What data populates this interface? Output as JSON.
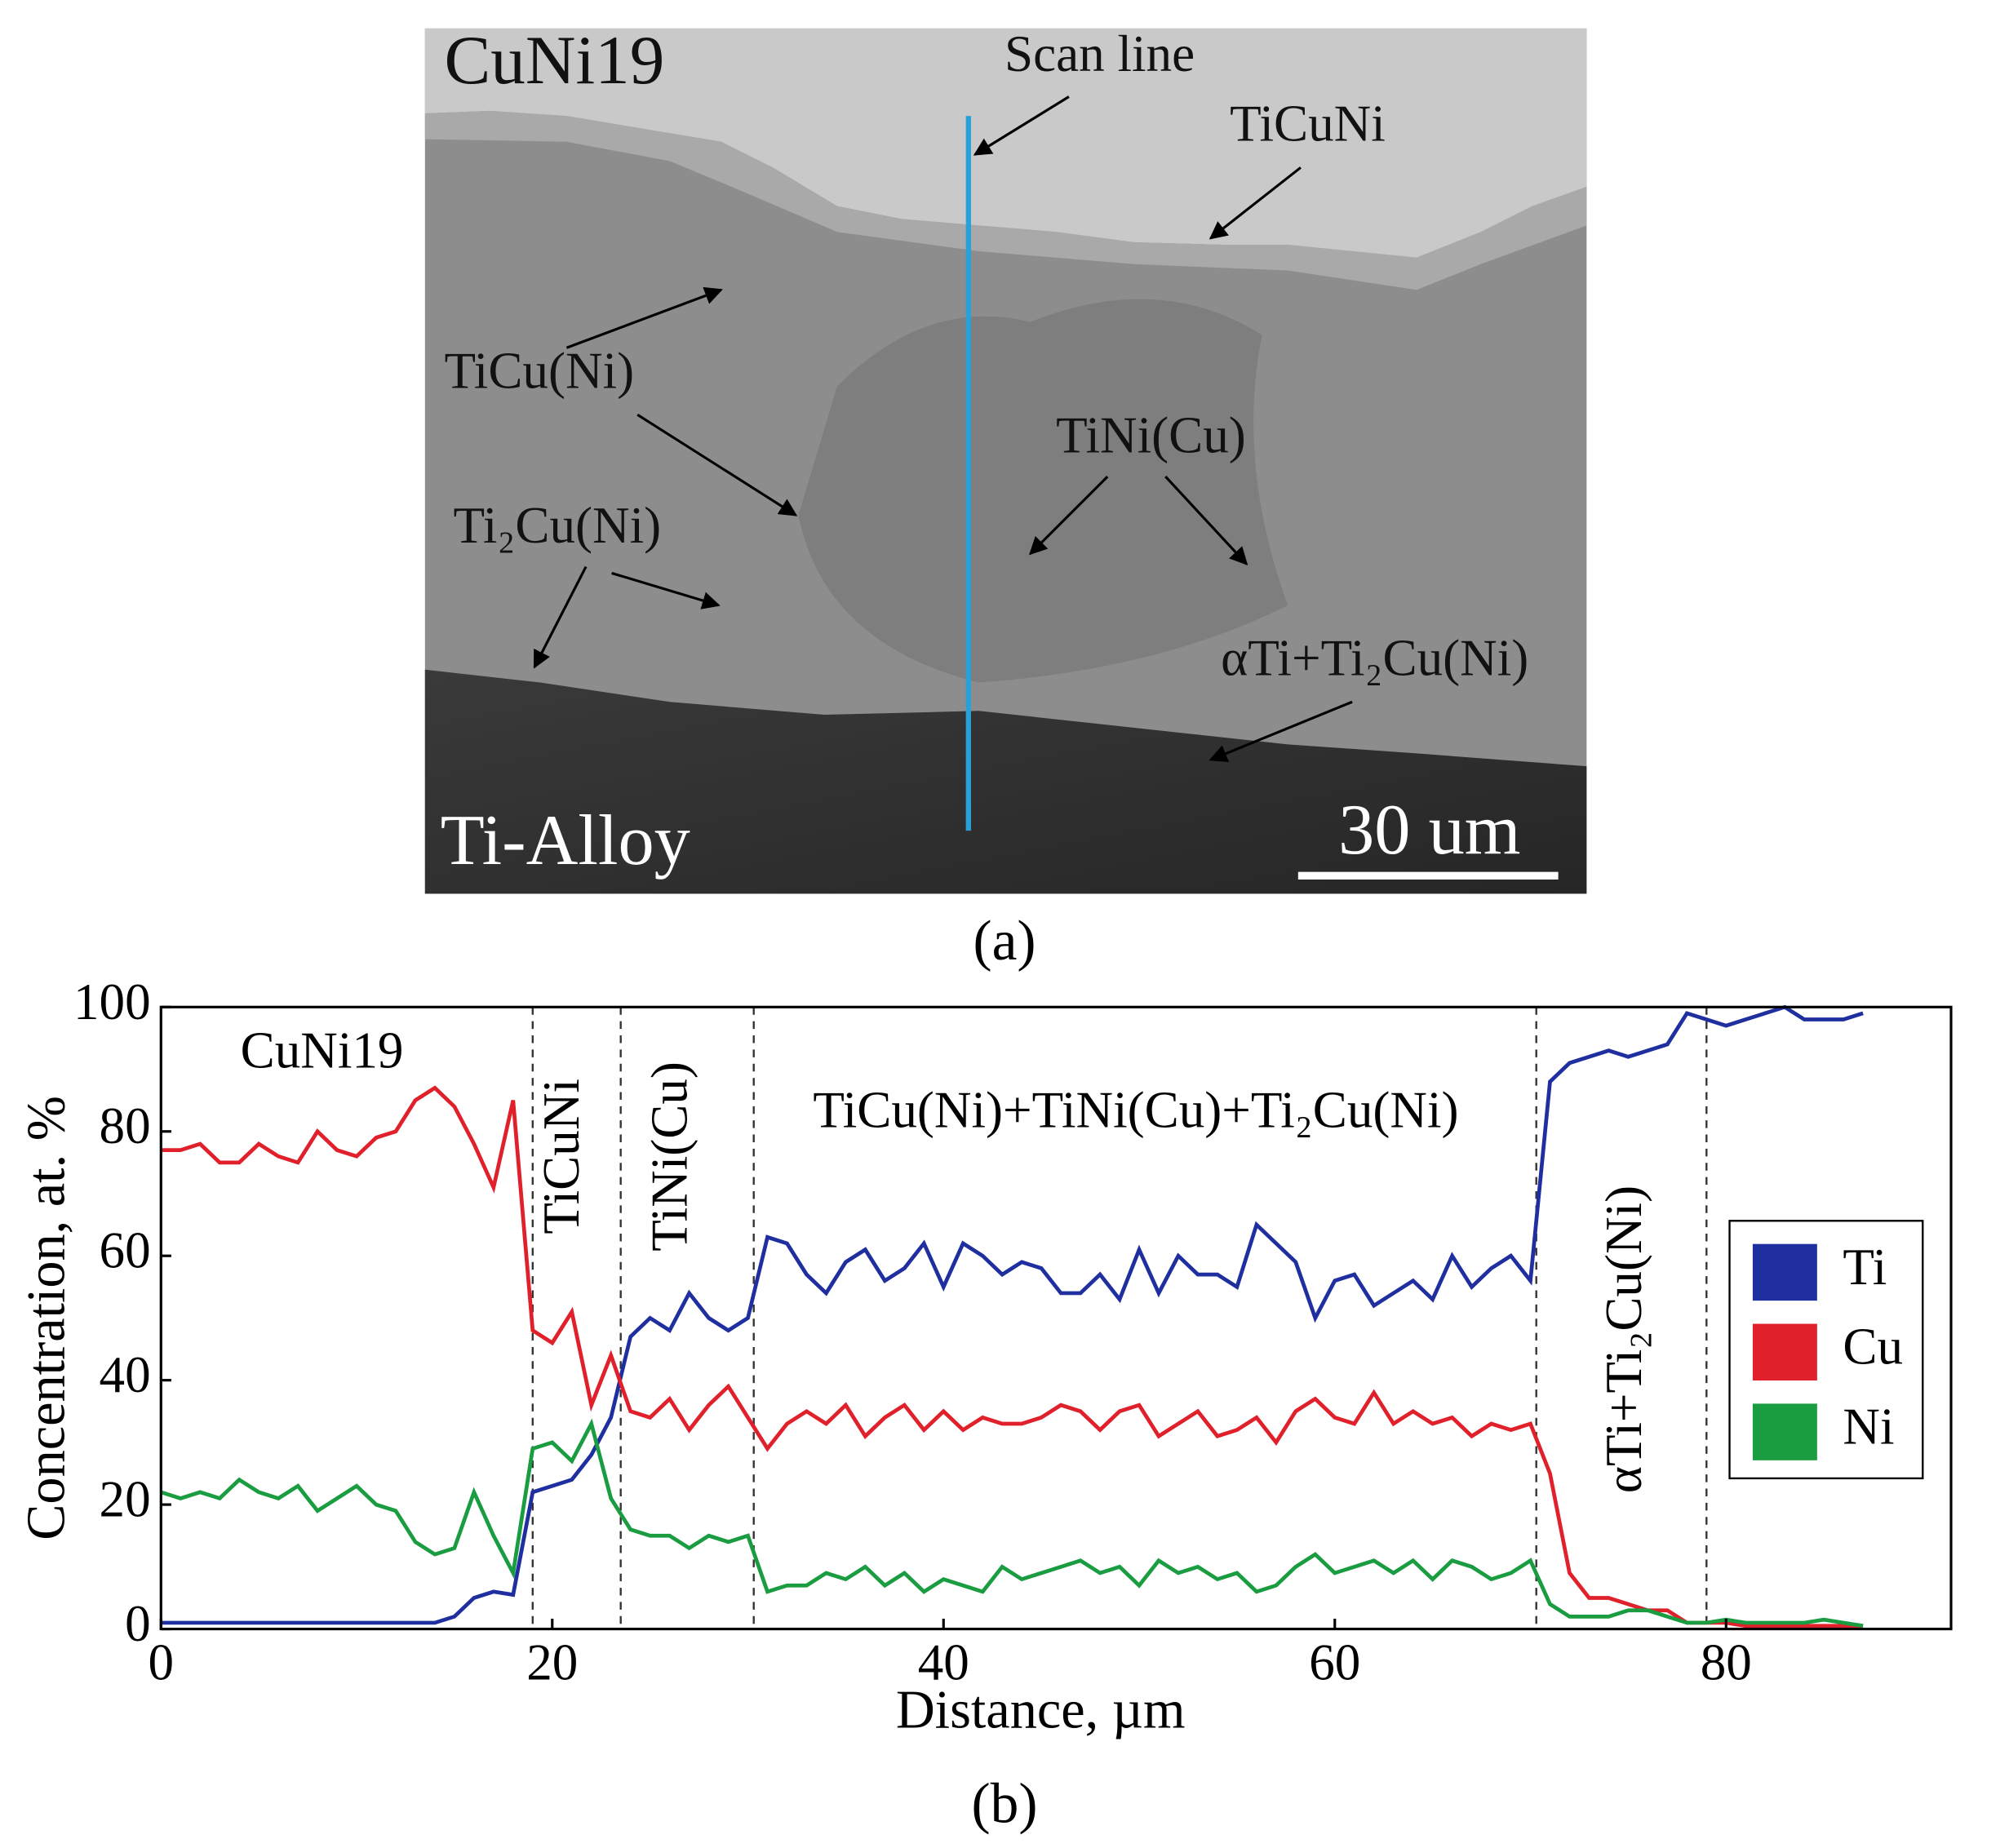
{
  "figure_a": {
    "label": "(a)",
    "texts": {
      "top": "CuNi19",
      "scan": "Scan line",
      "ticuni": "TiCuNi",
      "ticu": "TiCu(Ni)",
      "tini": "TiNi(Cu)",
      "ti2cu": "Ti₂Cu(Ni)",
      "alpha": "αTi+Ti₂Cu(Ni)",
      "bottom": "Ti-Alloy",
      "scale": "30 um"
    }
  },
  "figure_b": {
    "label": "(b)"
  },
  "chart_data": {
    "type": "line",
    "x_label": "Distance, µm",
    "y_label": "Concentration, at. %",
    "xlim": [
      0,
      91.5
    ],
    "ylim": [
      0,
      100
    ],
    "xticks": [
      0,
      20,
      40,
      60,
      80
    ],
    "yticks": [
      0,
      20,
      40,
      60,
      80,
      100
    ],
    "dividers": [
      19,
      23.5,
      30.3,
      70.3,
      79
    ],
    "regions": [
      "CuNi19",
      "TiCuNi",
      "TiNi(Cu)",
      "TiCu(Ni)+TiNi(Cu)+Ti₂Cu(Ni)",
      "αTi+Ti₂Cu(Ni)"
    ],
    "legend": "right",
    "x": [
      0,
      1,
      2,
      3,
      4,
      5,
      6,
      7,
      8,
      9,
      10,
      11,
      12,
      13,
      14,
      15,
      16,
      17,
      18,
      19,
      20,
      21,
      22,
      23,
      24,
      25,
      26,
      27,
      28,
      29,
      30,
      31,
      32,
      33,
      34,
      35,
      36,
      37,
      38,
      39,
      40,
      41,
      42,
      43,
      44,
      45,
      46,
      47,
      48,
      49,
      50,
      51,
      52,
      53,
      54,
      55,
      56,
      57,
      58,
      59,
      60,
      61,
      62,
      63,
      64,
      65,
      66,
      67,
      68,
      69,
      70,
      71,
      72,
      73,
      74,
      75,
      76,
      77,
      78,
      79,
      80,
      81,
      82,
      83,
      84,
      85,
      86,
      87
    ],
    "series": [
      {
        "name": "Ti",
        "color": "#1f2fa0",
        "values": [
          1,
          1,
          1,
          1,
          1,
          1,
          1,
          1,
          1,
          1,
          1,
          1,
          1,
          1,
          1,
          2,
          5,
          6,
          5.5,
          22,
          23,
          24,
          28,
          34,
          47,
          50,
          48,
          54,
          50,
          48,
          50,
          63,
          62,
          57,
          54,
          59,
          61,
          56,
          58,
          62,
          55,
          62,
          60,
          57,
          59,
          58,
          54,
          54,
          57,
          53,
          61,
          54,
          60,
          57,
          57,
          55,
          65,
          62,
          59,
          50,
          56,
          57,
          52,
          54,
          56,
          53,
          60,
          55,
          58,
          60,
          56,
          88,
          91,
          92,
          93,
          92,
          93,
          94,
          99,
          98,
          97,
          98,
          99,
          100,
          98,
          98,
          98,
          99
        ]
      },
      {
        "name": "Cu",
        "color": "#e0202a",
        "values": [
          77,
          77,
          78,
          75,
          75,
          78,
          76,
          75,
          80,
          77,
          76,
          79,
          80,
          85,
          87,
          84,
          78,
          71,
          85,
          48,
          46,
          51,
          36,
          44,
          35,
          34,
          37,
          32,
          36,
          39,
          34,
          29,
          33,
          35,
          33,
          36,
          31,
          34,
          36,
          32,
          35,
          32,
          34,
          33,
          33,
          34,
          36,
          35,
          32,
          35,
          36,
          31,
          33,
          35,
          31,
          32,
          34,
          30,
          35,
          37,
          34,
          33,
          38,
          33,
          35,
          33,
          34,
          31,
          33,
          32,
          33,
          25,
          9,
          5,
          5,
          4,
          3,
          3,
          1,
          1,
          1,
          0.5,
          0.5,
          0.5,
          0.5,
          0.5,
          0.5,
          0.5
        ]
      },
      {
        "name": "Ni",
        "color": "#1a9c40",
        "values": [
          22,
          21,
          22,
          21,
          24,
          22,
          21,
          23,
          19,
          21,
          23,
          20,
          19,
          14,
          12,
          13,
          22,
          15,
          9,
          29,
          30,
          27,
          33,
          21,
          16,
          15,
          15,
          13,
          15,
          14,
          15,
          6,
          7,
          7,
          9,
          8,
          10,
          7,
          9,
          6,
          8,
          7,
          6,
          10,
          8,
          9,
          10,
          11,
          9,
          10,
          7,
          11,
          9,
          10,
          8,
          9,
          6,
          7,
          10,
          12,
          9,
          10,
          11,
          9,
          11,
          8,
          11,
          10,
          8,
          9,
          11,
          4,
          2,
          2,
          2,
          3,
          3,
          2,
          1,
          1,
          1.5,
          1,
          1,
          1,
          1,
          1.5,
          1,
          0.5
        ]
      }
    ]
  }
}
